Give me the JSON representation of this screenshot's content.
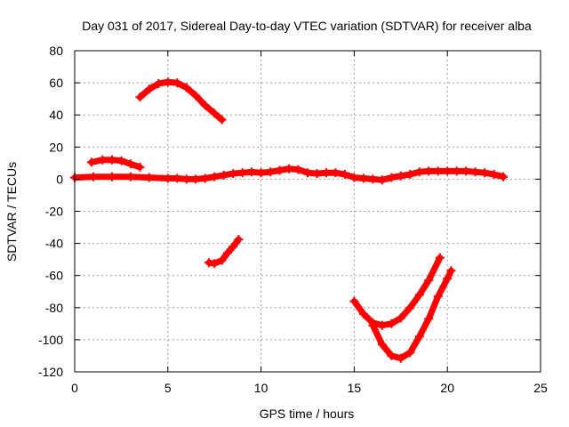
{
  "chart_data": {
    "type": "scatter",
    "title": "Day 031 of 2017, Sidereal Day-to-day VTEC variation (SDTVAR) for receiver alba",
    "xlabel": "GPS time / hours",
    "ylabel": "SDTVAR / TECUs",
    "xlim": [
      0,
      25
    ],
    "ylim": [
      -120,
      80
    ],
    "xticks": [
      0,
      5,
      10,
      15,
      20,
      25
    ],
    "yticks": [
      -120,
      -100,
      -80,
      -60,
      -40,
      -20,
      0,
      20,
      40,
      60,
      80
    ],
    "grid": true,
    "legend": "none",
    "series_color": "#ff0000",
    "series": [
      {
        "name": "baseline",
        "x": [
          0,
          1,
          2,
          3,
          4,
          5,
          5.5,
          6,
          6.5,
          7,
          7.5,
          8,
          8.5,
          9,
          9.5,
          10,
          10.5,
          11,
          11.5,
          12,
          12.5,
          13,
          13.5,
          14,
          14.5,
          15,
          15.5,
          16,
          16.5,
          17,
          17.5,
          18,
          18.5,
          19,
          19.5,
          20,
          20.5,
          21,
          21.5,
          22,
          22.5,
          23
        ],
        "y": [
          1,
          1.5,
          1.5,
          1.5,
          1,
          0.5,
          0.5,
          0,
          0,
          0.5,
          1.5,
          2.5,
          3.5,
          4,
          4.5,
          4,
          4.5,
          5.5,
          6.5,
          6,
          4,
          3.5,
          4,
          4,
          3,
          1,
          0.5,
          0,
          -0.5,
          1,
          2,
          3,
          4.5,
          5,
          5,
          5,
          5,
          5,
          4.5,
          4,
          3,
          1.5
        ]
      },
      {
        "name": "arc-upper",
        "x": [
          3.5,
          4,
          4.5,
          5,
          5.5,
          6,
          6.5,
          7,
          7.5,
          7.9
        ],
        "y": [
          51,
          56,
          59.5,
          60.5,
          60,
          57,
          52,
          46,
          41,
          37
        ]
      },
      {
        "name": "arc-small",
        "x": [
          0.9,
          1.5,
          2,
          2.5,
          3,
          3.5
        ],
        "y": [
          10.5,
          12,
          12,
          11.5,
          9.5,
          7.5
        ]
      },
      {
        "name": "arc-negative-40",
        "x": [
          7.2,
          7.5,
          7.9,
          8.2,
          8.5,
          8.8
        ],
        "y": [
          -52,
          -52.5,
          -50.5,
          -46,
          -42,
          -37.5
        ]
      },
      {
        "name": "curve-negative-90",
        "x": [
          15,
          15.5,
          16,
          16.5,
          17,
          17.5,
          18,
          18.5,
          19,
          19.6
        ],
        "y": [
          -76,
          -84,
          -89.5,
          -91,
          -90,
          -86.5,
          -80,
          -72,
          -63,
          -49
        ]
      },
      {
        "name": "curve-negative-110",
        "x": [
          16,
          16.5,
          17,
          17.5,
          18,
          18.5,
          19,
          19.5,
          20,
          20.2
        ],
        "y": [
          -91,
          -103,
          -110,
          -111.5,
          -108,
          -98,
          -87,
          -73,
          -62,
          -57
        ]
      }
    ]
  }
}
